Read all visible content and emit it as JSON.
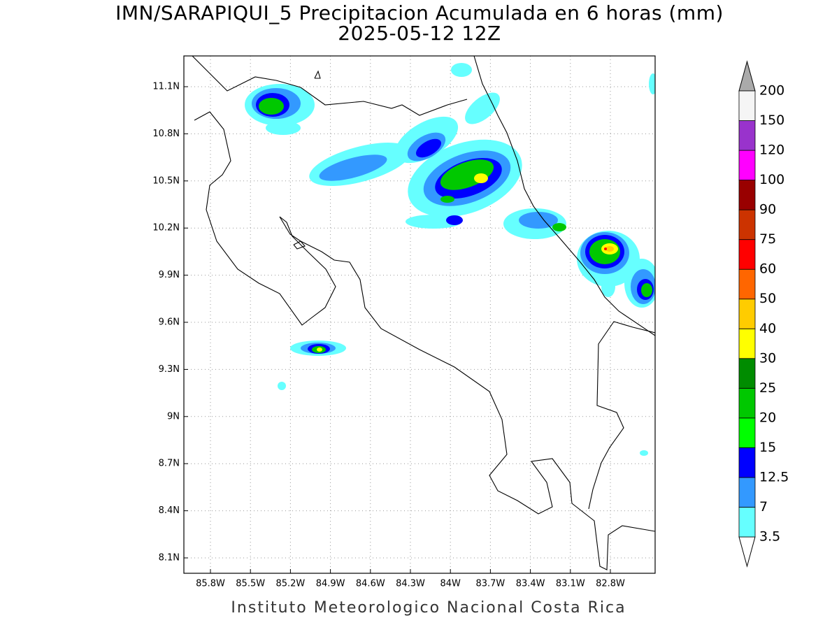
{
  "title": "IMN/SARAPIQUI_5 Precipitacion Acumulada en 6 horas (mm)",
  "subtitle": "2025-05-12 12Z",
  "map": {
    "lat_ticks": [
      "11.1N",
      "10.8N",
      "10.5N",
      "10.2N",
      "9.9N",
      "9.6N",
      "9.3N",
      "9N",
      "8.7N",
      "8.4N",
      "8.1N"
    ],
    "lon_ticks": [
      "85.8W",
      "85.5W",
      "85.2W",
      "84.9W",
      "84.6W",
      "84.3W",
      "84W",
      "83.7W",
      "83.4W",
      "83.1W",
      "82.8W"
    ]
  },
  "colorbar": {
    "levels": [
      3.5,
      7,
      12.5,
      15,
      20,
      25,
      30,
      40,
      50,
      60,
      75,
      90,
      100,
      120,
      150,
      200
    ],
    "colors": [
      "#66ffff",
      "#3399ff",
      "#0000ff",
      "#00ff00",
      "#00c800",
      "#008c00",
      "#ffff00",
      "#ffcc00",
      "#ff6600",
      "#ff0000",
      "#cc3300",
      "#990000",
      "#ff00ff",
      "#9933cc",
      "#f5f5f5"
    ],
    "below_color": "#ffffff",
    "above_color": "#aaaaaa"
  },
  "footer": "Instituto Meteorologico Nacional Costa Rica"
}
